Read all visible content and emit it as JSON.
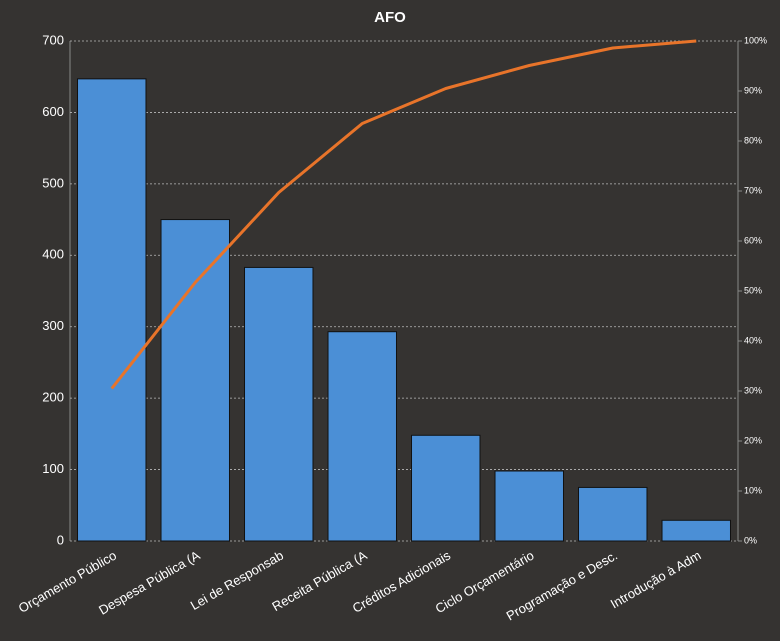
{
  "chart_data": {
    "type": "pareto",
    "title": "AFO",
    "categories": [
      "Orçamento Público",
      "Despesa Pública (A",
      "Lei de Responsab",
      "Receita Pública (A",
      "Créditos Adicionais",
      "Ciclo Orçamentário",
      "Programação e Desc.",
      "Introdução à Adm"
    ],
    "series": [
      {
        "type": "bar",
        "color": "#4b8fd6",
        "values": [
          647,
          450,
          383,
          293,
          148,
          98,
          75,
          29
        ]
      },
      {
        "type": "line",
        "axis": "y2",
        "color": "#e8742a",
        "values": [
          30.5,
          51.7,
          69.7,
          83.5,
          90.5,
          95.1,
          98.6,
          100
        ]
      }
    ],
    "ylim": [
      0,
      700
    ],
    "yticks": [
      0,
      100,
      200,
      300,
      400,
      500,
      600,
      700
    ],
    "y2lim": [
      0,
      100
    ],
    "y2ticks": [
      {
        "value": 0,
        "label": "0%"
      },
      {
        "value": 10,
        "label": "10%"
      },
      {
        "value": 20,
        "label": "20%"
      },
      {
        "value": 30,
        "label": "30%"
      },
      {
        "value": 40,
        "label": "40%"
      },
      {
        "value": 50,
        "label": "50%"
      },
      {
        "value": 60,
        "label": "60%"
      },
      {
        "value": 70,
        "label": "70%"
      },
      {
        "value": 80,
        "label": "80%"
      },
      {
        "value": 90,
        "label": "90%"
      },
      {
        "value": 100,
        "label": "100%"
      }
    ],
    "grid": true
  }
}
